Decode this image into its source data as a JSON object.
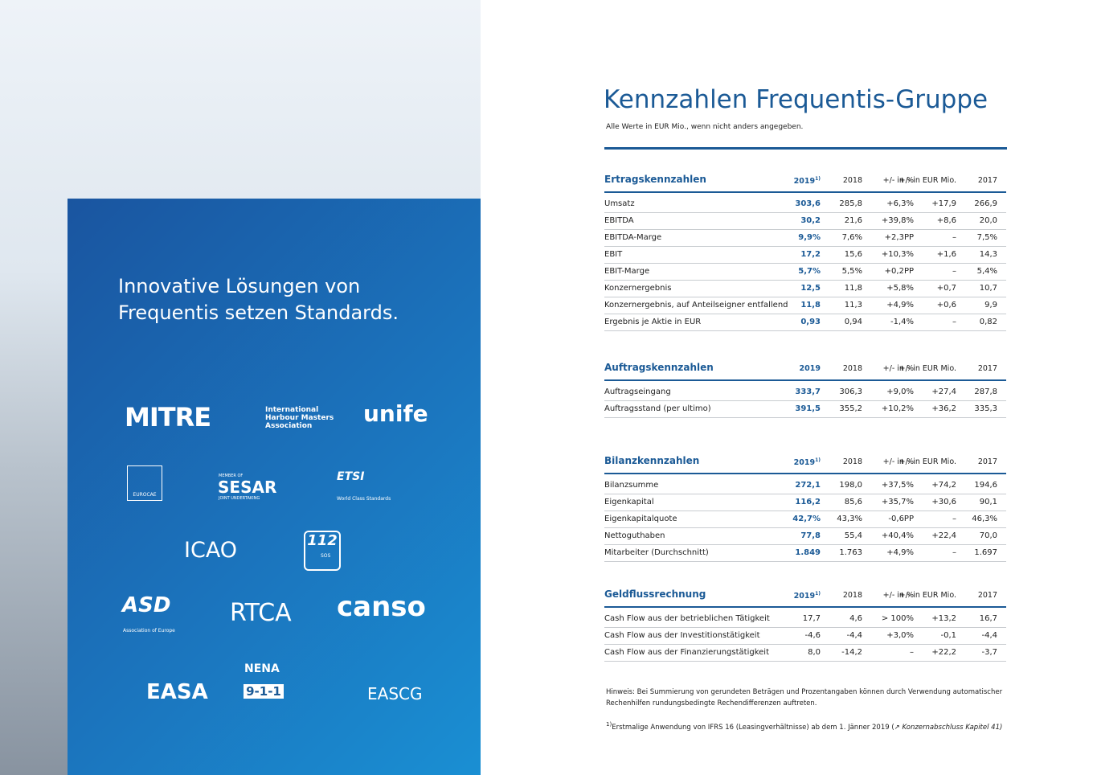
{
  "left": {
    "headline": [
      "Innovative Lösungen von",
      "Frequentis setzen Standards."
    ],
    "logos": [
      "MITRE",
      "International Harbour Masters Association",
      "unife",
      "EUROCAE",
      "MEMBER OF",
      "SESAR",
      "JOINT UNDERTAKING",
      "ETSI",
      "World Class Standards",
      "ICAO",
      "112",
      "SOS",
      "ASD",
      "Association of Europe",
      "RTCA",
      "canso",
      "EASA",
      "NENA",
      "9-1-1",
      "EASCG"
    ]
  },
  "header": {
    "title": "Kennzahlen Frequentis-Gruppe",
    "subtitle": "Alle Werte in EUR Mio., wenn nicht anders angegeben."
  },
  "sections": [
    {
      "name": "Ertragskennzahlen",
      "columns": [
        "2019",
        "2018",
        "+/- in %",
        "+/- in EUR Mio.",
        "2017"
      ],
      "sup": "1)",
      "rows": [
        [
          "Umsatz",
          "303,6",
          "285,8",
          "+6,3%",
          "+17,9",
          "266,9"
        ],
        [
          "EBITDA",
          "30,2",
          "21,6",
          "+39,8%",
          "+8,6",
          "20,0"
        ],
        [
          "EBITDA-Marge",
          "9,9%",
          "7,6%",
          "+2,3PP",
          "–",
          "7,5%"
        ],
        [
          "EBIT",
          "17,2",
          "15,6",
          "+10,3%",
          "+1,6",
          "14,3"
        ],
        [
          "EBIT-Marge",
          "5,7%",
          "5,5%",
          "+0,2PP",
          "–",
          "5,4%"
        ],
        [
          "Konzernergebnis",
          "12,5",
          "11,8",
          "+5,8%",
          "+0,7",
          "10,7"
        ],
        [
          "Konzernergebnis, auf Anteilseigner entfallend",
          "11,8",
          "11,3",
          "+4,9%",
          "+0,6",
          "9,9"
        ],
        [
          "Ergebnis je Aktie in EUR",
          "0,93",
          "0,94",
          "-1,4%",
          "–",
          "0,82"
        ]
      ]
    },
    {
      "name": "Auftragskennzahlen",
      "columns": [
        "2019",
        "2018",
        "+/- in %",
        "+/- in EUR Mio.",
        "2017"
      ],
      "rows": [
        [
          "Auftragseingang",
          "333,7",
          "306,3",
          "+9,0%",
          "+27,4",
          "287,8"
        ],
        [
          "Auftragsstand (per ultimo)",
          "391,5",
          "355,2",
          "+10,2%",
          "+36,2",
          "335,3"
        ]
      ]
    },
    {
      "name": "Bilanzkennzahlen",
      "columns": [
        "2019",
        "2018",
        "+/- in %",
        "+/- in EUR Mio.",
        "2017"
      ],
      "sup": "1)",
      "rows": [
        [
          "Bilanzsumme",
          "272,1",
          "198,0",
          "+37,5%",
          "+74,2",
          "194,6"
        ],
        [
          "Eigenkapital",
          "116,2",
          "85,6",
          "+35,7%",
          "+30,6",
          "90,1"
        ],
        [
          "Eigenkapitalquote",
          "42,7%",
          "43,3%",
          "-0,6PP",
          "–",
          "46,3%"
        ],
        [
          "Nettoguthaben",
          "77,8",
          "55,4",
          "+40,4%",
          "+22,4",
          "70,0"
        ],
        [
          "Mitarbeiter (Durchschnitt)",
          "1.849",
          "1.763",
          "+4,9%",
          "–",
          "1.697"
        ]
      ]
    },
    {
      "name": "Geldflussrechnung",
      "columns": [
        "2019",
        "2018",
        "+/- in %",
        "+/- in EUR Mio.",
        "2017"
      ],
      "sup": "1)",
      "rows": [
        [
          "Cash Flow aus der betrieblichen Tätigkeit",
          "17,7",
          "4,6",
          "> 100%",
          "+13,2",
          "16,7"
        ],
        [
          "Cash Flow aus der Investitionstätigkeit",
          "-4,6",
          "-4,4",
          "+3,0%",
          "-0,1",
          "-4,4"
        ],
        [
          "Cash Flow aus der Finanzierungstätigkeit",
          "8,0",
          "-14,2",
          "–",
          "+22,2",
          "-3,7"
        ]
      ]
    }
  ],
  "notes": {
    "hint": "Hinweis: Bei Summierung von gerundeten Beträgen und Prozentangaben können durch Verwendung automatischer Rechenhilfen rundungsbedingte Rechendifferenzen auftreten.",
    "footnote_mark": "1)",
    "footnote": "Erstmalige Anwendung von IFRS 16 (Leasingverhältnisse) ab dem 1. Jänner 2019 (↗",
    "footnote_link": "Konzernabschluss Kapitel 41)"
  }
}
